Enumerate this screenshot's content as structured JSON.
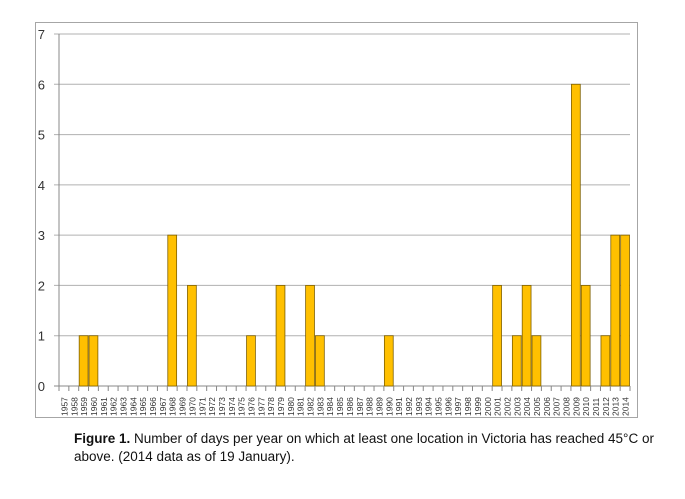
{
  "chart_data": {
    "type": "bar",
    "title": "",
    "xlabel": "",
    "ylabel": "",
    "ylim": [
      0,
      7
    ],
    "yticks": [
      0,
      1,
      2,
      3,
      4,
      5,
      6,
      7
    ],
    "grid": true,
    "legend": null,
    "bar_color": "#FFC000",
    "bar_edge_color": "#7f6000",
    "categories": [
      "1957",
      "1958",
      "1959",
      "1960",
      "1961",
      "1962",
      "1963",
      "1964",
      "1965",
      "1966",
      "1967",
      "1968",
      "1969",
      "1970",
      "1971",
      "1972",
      "1973",
      "1974",
      "1975",
      "1976",
      "1977",
      "1978",
      "1979",
      "1980",
      "1981",
      "1982",
      "1983",
      "1984",
      "1985",
      "1986",
      "1987",
      "1988",
      "1989",
      "1990",
      "1991",
      "1992",
      "1993",
      "1994",
      "1995",
      "1996",
      "1997",
      "1998",
      "1999",
      "2000",
      "2001",
      "2002",
      "2003",
      "2004",
      "2005",
      "2006",
      "2007",
      "2008",
      "2009",
      "2010",
      "2011",
      "2012",
      "2013",
      "2014"
    ],
    "values": [
      0,
      0,
      1,
      1,
      0,
      0,
      0,
      0,
      0,
      0,
      0,
      3,
      0,
      2,
      0,
      0,
      0,
      0,
      0,
      1,
      0,
      0,
      2,
      0,
      0,
      2,
      1,
      0,
      0,
      0,
      0,
      0,
      0,
      1,
      0,
      0,
      0,
      0,
      0,
      0,
      0,
      0,
      0,
      0,
      2,
      0,
      1,
      2,
      1,
      0,
      0,
      0,
      6,
      2,
      0,
      1,
      3,
      3
    ]
  },
  "caption": {
    "label": "Figure 1.",
    "text": " Number of days per year on which at least one location in Victoria has reached 45°C or above. (2014 data as of 19 January)."
  }
}
